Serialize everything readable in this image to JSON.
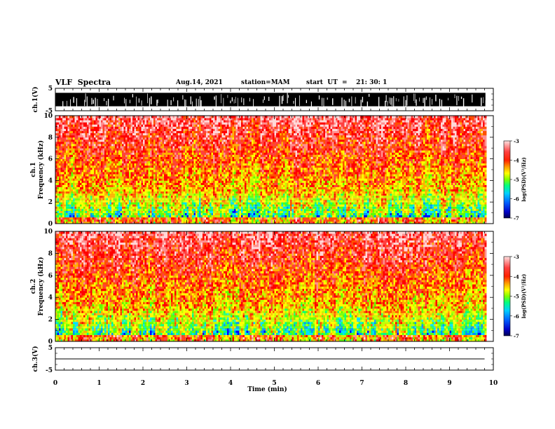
{
  "header": {
    "title": "VLF  Spectra",
    "date": "Aug.14, 2021",
    "station": "station=MAM",
    "start": "start  UT  =    21: 30: 1"
  },
  "chart_data": [
    {
      "type": "line",
      "panel": "waveform-ch1",
      "ylabel": "ch.1(V)",
      "ylim": [
        -5,
        5
      ],
      "yticks": [
        "5",
        "-5"
      ],
      "xlim": [
        0,
        10
      ],
      "description_values": "dense saturated waveform spanning roughly -3 to 3 V"
    },
    {
      "type": "heatmap",
      "panel": "spectrogram-ch1",
      "ylabel": "ch.1\nFrequency (kHz)",
      "ylim": [
        0,
        10
      ],
      "yticks": [
        "0",
        "2",
        "4",
        "6",
        "8",
        "10"
      ],
      "xlim": [
        0,
        10
      ],
      "colorbar": {
        "label": "log(PSD)(V²/Hz)",
        "range": [
          -7,
          -3
        ],
        "ticks": [
          "-3",
          "-4",
          "-5",
          "-6",
          "-7"
        ]
      }
    },
    {
      "type": "heatmap",
      "panel": "spectrogram-ch2",
      "ylabel": "ch.2\nFrequency (kHz)",
      "ylim": [
        0,
        10
      ],
      "yticks": [
        "0",
        "2",
        "4",
        "6",
        "8",
        "10"
      ],
      "xlim": [
        0,
        10
      ],
      "colorbar": {
        "label": "log(PSD)(V²/Hz)",
        "range": [
          -7,
          -3
        ],
        "ticks": [
          "-3",
          "-4",
          "-5",
          "-6",
          "-7"
        ]
      }
    },
    {
      "type": "line",
      "panel": "waveform-ch3",
      "ylabel": "ch.3(V)",
      "ylim": [
        -5,
        5
      ],
      "yticks": [
        "5",
        "-5"
      ],
      "xlim": [
        0,
        10
      ],
      "series": [
        {
          "x": [
            0,
            9.8
          ],
          "y": [
            0,
            0
          ]
        }
      ]
    }
  ],
  "xaxis": {
    "label": "Time  (min)",
    "ticks": [
      "0",
      "1",
      "2",
      "3",
      "4",
      "5",
      "6",
      "7",
      "8",
      "9",
      "10"
    ]
  },
  "colors": {
    "colormap": [
      "#000080",
      "#0000ff",
      "#00a0ff",
      "#00ffa0",
      "#40ff00",
      "#b0ff00",
      "#ffff00",
      "#ffb000",
      "#ff6000",
      "#ff0000",
      "#ff8080",
      "#ffd0d0"
    ]
  }
}
